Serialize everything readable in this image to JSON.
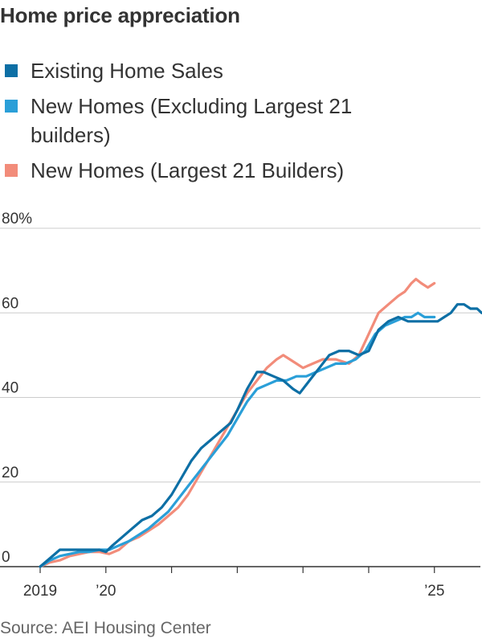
{
  "title": "Home price appreciation",
  "source": "Source: AEI Housing Center",
  "chart_data": {
    "type": "line",
    "title": "Home price appreciation",
    "xlabel": "",
    "ylabel": "",
    "ylim": [
      0,
      80
    ],
    "xlim": [
      2019.0,
      2025.7
    ],
    "grid": "horizontal",
    "legend_position": "top",
    "y_ticks": [
      {
        "value": 0,
        "label": "0"
      },
      {
        "value": 20,
        "label": "20"
      },
      {
        "value": 40,
        "label": "40"
      },
      {
        "value": 60,
        "label": "60"
      },
      {
        "value": 80,
        "label": "80%"
      }
    ],
    "x_ticks": [
      {
        "value": 2019,
        "label": "2019"
      },
      {
        "value": 2020,
        "label": "’20"
      },
      {
        "value": 2021,
        "label": ""
      },
      {
        "value": 2022,
        "label": ""
      },
      {
        "value": 2023,
        "label": ""
      },
      {
        "value": 2024,
        "label": ""
      },
      {
        "value": 2025,
        "label": "’25"
      }
    ],
    "series": [
      {
        "name": "New Homes (Largest 21 Builders)",
        "color": "#f28c7a",
        "points": [
          [
            2019.0,
            0
          ],
          [
            2019.15,
            1
          ],
          [
            2019.3,
            1.5
          ],
          [
            2019.45,
            2.5
          ],
          [
            2019.6,
            3
          ],
          [
            2019.75,
            3.5
          ],
          [
            2019.9,
            3.5
          ],
          [
            2020.05,
            3
          ],
          [
            2020.2,
            4
          ],
          [
            2020.35,
            6
          ],
          [
            2020.5,
            7
          ],
          [
            2020.65,
            8.5
          ],
          [
            2020.8,
            10
          ],
          [
            2020.95,
            12
          ],
          [
            2021.1,
            14
          ],
          [
            2021.25,
            17
          ],
          [
            2021.4,
            21
          ],
          [
            2021.55,
            25
          ],
          [
            2021.7,
            29
          ],
          [
            2021.85,
            33
          ],
          [
            2022.0,
            37
          ],
          [
            2022.15,
            41
          ],
          [
            2022.3,
            44
          ],
          [
            2022.45,
            47
          ],
          [
            2022.6,
            49
          ],
          [
            2022.7,
            50
          ],
          [
            2022.8,
            49
          ],
          [
            2022.9,
            48
          ],
          [
            2023.0,
            47
          ],
          [
            2023.15,
            48
          ],
          [
            2023.3,
            49
          ],
          [
            2023.5,
            49
          ],
          [
            2023.7,
            48
          ],
          [
            2023.85,
            50
          ],
          [
            2024.0,
            55
          ],
          [
            2024.15,
            60
          ],
          [
            2024.3,
            62
          ],
          [
            2024.45,
            64
          ],
          [
            2024.55,
            65
          ],
          [
            2024.65,
            67
          ],
          [
            2024.72,
            68
          ],
          [
            2024.8,
            67
          ],
          [
            2024.9,
            66
          ],
          [
            2025.0,
            67
          ]
        ]
      },
      {
        "name": "New Homes (Excluding Largest 21 builders)",
        "color": "#2a9fd8",
        "points": [
          [
            2019.0,
            0
          ],
          [
            2019.15,
            1.5
          ],
          [
            2019.3,
            2.5
          ],
          [
            2019.45,
            3
          ],
          [
            2019.6,
            3.5
          ],
          [
            2019.75,
            3.5
          ],
          [
            2019.9,
            4
          ],
          [
            2020.05,
            4
          ],
          [
            2020.2,
            5
          ],
          [
            2020.35,
            6
          ],
          [
            2020.5,
            7.5
          ],
          [
            2020.65,
            9
          ],
          [
            2020.8,
            11
          ],
          [
            2020.95,
            13
          ],
          [
            2021.1,
            16
          ],
          [
            2021.25,
            19
          ],
          [
            2021.4,
            22
          ],
          [
            2021.55,
            25
          ],
          [
            2021.7,
            28
          ],
          [
            2021.85,
            31
          ],
          [
            2022.0,
            35
          ],
          [
            2022.15,
            39
          ],
          [
            2022.3,
            42
          ],
          [
            2022.45,
            43
          ],
          [
            2022.6,
            44
          ],
          [
            2022.75,
            44
          ],
          [
            2022.9,
            45
          ],
          [
            2023.05,
            45
          ],
          [
            2023.2,
            46
          ],
          [
            2023.35,
            47
          ],
          [
            2023.5,
            48
          ],
          [
            2023.65,
            48
          ],
          [
            2023.8,
            49
          ],
          [
            2023.95,
            51
          ],
          [
            2024.1,
            55
          ],
          [
            2024.25,
            57
          ],
          [
            2024.4,
            58
          ],
          [
            2024.55,
            59
          ],
          [
            2024.65,
            59
          ],
          [
            2024.75,
            60
          ],
          [
            2024.85,
            59
          ],
          [
            2025.0,
            59
          ]
        ]
      },
      {
        "name": "Existing Home Sales",
        "color": "#0d6fa5",
        "points": [
          [
            2019.0,
            0
          ],
          [
            2019.15,
            2
          ],
          [
            2019.3,
            4
          ],
          [
            2019.45,
            4
          ],
          [
            2019.6,
            4
          ],
          [
            2019.75,
            4
          ],
          [
            2019.9,
            4
          ],
          [
            2020.0,
            3.5
          ],
          [
            2020.1,
            5
          ],
          [
            2020.25,
            7
          ],
          [
            2020.4,
            9
          ],
          [
            2020.55,
            11
          ],
          [
            2020.7,
            12
          ],
          [
            2020.85,
            14
          ],
          [
            2021.0,
            17
          ],
          [
            2021.15,
            21
          ],
          [
            2021.3,
            25
          ],
          [
            2021.45,
            28
          ],
          [
            2021.6,
            30
          ],
          [
            2021.75,
            32
          ],
          [
            2021.9,
            34
          ],
          [
            2022.0,
            37
          ],
          [
            2022.15,
            42
          ],
          [
            2022.3,
            46
          ],
          [
            2022.4,
            46
          ],
          [
            2022.55,
            45
          ],
          [
            2022.7,
            44
          ],
          [
            2022.85,
            42
          ],
          [
            2022.95,
            41
          ],
          [
            2023.1,
            44
          ],
          [
            2023.25,
            47
          ],
          [
            2023.4,
            50
          ],
          [
            2023.55,
            51
          ],
          [
            2023.7,
            51
          ],
          [
            2023.85,
            50
          ],
          [
            2024.0,
            51
          ],
          [
            2024.15,
            56
          ],
          [
            2024.3,
            58
          ],
          [
            2024.45,
            59
          ],
          [
            2024.6,
            58
          ],
          [
            2024.75,
            58
          ],
          [
            2024.9,
            58
          ],
          [
            2025.05,
            58
          ],
          [
            2025.15,
            59
          ],
          [
            2025.25,
            60
          ],
          [
            2025.35,
            62
          ],
          [
            2025.45,
            62
          ],
          [
            2025.55,
            61
          ],
          [
            2025.65,
            61
          ],
          [
            2025.72,
            60
          ]
        ]
      }
    ]
  },
  "legend": [
    {
      "label": "Existing Home Sales",
      "color": "#0d6fa5"
    },
    {
      "label": "New Homes (Excluding Largest 21 builders)",
      "color": "#2a9fd8"
    },
    {
      "label": "New Homes (Largest 21 Builders)",
      "color": "#f28c7a"
    }
  ]
}
